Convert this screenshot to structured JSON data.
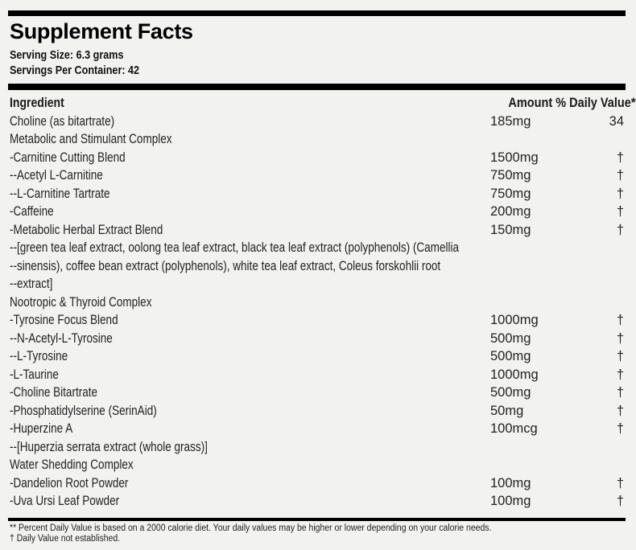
{
  "label": {
    "title": "Supplement Facts",
    "serving_size": "Serving Size: 6.3 grams",
    "servings_per_container": "Servings Per Container: 42"
  },
  "table": {
    "header": {
      "ingredient": "Ingredient",
      "amount_dv": "Amount % Daily Value**"
    },
    "rows": [
      {
        "name": "Choline (as bitartrate)",
        "amount": "185mg",
        "dv": "34"
      },
      {
        "name": "Metabolic and Stimulant Complex",
        "amount": "",
        "dv": ""
      },
      {
        "name": "-Carnitine Cutting Blend",
        "amount": "1500mg",
        "dv": "†"
      },
      {
        "name": "--Acetyl L-Carnitine",
        "amount": "750mg",
        "dv": "†"
      },
      {
        "name": "--L-Carnitine Tartrate",
        "amount": "750mg",
        "dv": "†"
      },
      {
        "name": "-Caffeine",
        "amount": "200mg",
        "dv": "†"
      },
      {
        "name": "-Metabolic Herbal Extract Blend",
        "amount": "150mg",
        "dv": "†"
      },
      {
        "name": "--[green tea leaf extract, oolong tea leaf extract, black tea leaf extract (polyphenols) (Camellia",
        "amount": "",
        "dv": ""
      },
      {
        "name": "--sinensis), coffee bean extract (polyphenols), white tea leaf extract, Coleus forskohlii root",
        "amount": "",
        "dv": ""
      },
      {
        "name": "--extract]",
        "amount": "",
        "dv": ""
      },
      {
        "name": "Nootropic & Thyroid Complex",
        "amount": "",
        "dv": ""
      },
      {
        "name": "-Tyrosine Focus Blend",
        "amount": "1000mg",
        "dv": "†"
      },
      {
        "name": "--N-Acetyl-L-Tyrosine",
        "amount": "500mg",
        "dv": "†"
      },
      {
        "name": "--L-Tyrosine",
        "amount": "500mg",
        "dv": "†"
      },
      {
        "name": "-L-Taurine",
        "amount": "1000mg",
        "dv": "†"
      },
      {
        "name": "-Choline Bitartrate",
        "amount": "500mg",
        "dv": "†"
      },
      {
        "name": "-Phosphatidylserine (SerinAid)",
        "amount": "50mg",
        "dv": "†"
      },
      {
        "name": "-Huperzine A",
        "amount": "100mcg",
        "dv": "†"
      },
      {
        "name": "--[Huperzia serrata extract (whole grass)]",
        "amount": "",
        "dv": ""
      },
      {
        "name": "Water Shedding Complex",
        "amount": "",
        "dv": ""
      },
      {
        "name": "-Dandelion Root Powder",
        "amount": "100mg",
        "dv": "†"
      },
      {
        "name": "-Uva Ursi Leaf Powder",
        "amount": "100mg",
        "dv": "†"
      }
    ]
  },
  "footnotes": {
    "percent_dv": "** Percent Daily Value is based on a 2000 calorie diet. Your daily values may be higher or lower depending on your calorie needs.",
    "not_established": "† Daily Value not established."
  },
  "colors": {
    "background": "#f2f2f1",
    "bar": "#000000",
    "text": "#222222"
  }
}
